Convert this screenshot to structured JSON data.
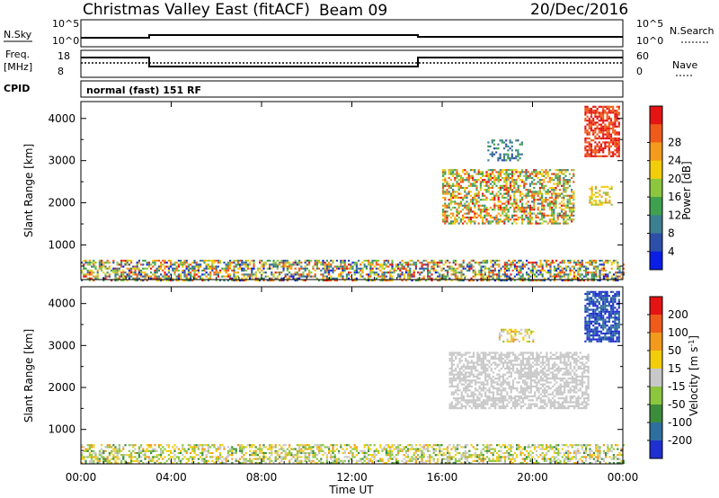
{
  "header": {
    "site": "Christmas Valley East (fitACF)",
    "beam": "Beam 09",
    "date": "20/Dec/2016"
  },
  "top_panels": {
    "nsky_label": "N.Sky",
    "nsearch_label": "N.Search",
    "noise_ticks_left": [
      "10^5",
      "10^0"
    ],
    "noise_ticks_right": [
      "10^5",
      "10^0"
    ],
    "freq_label": "Freq.",
    "freq_unit": "[MHz]",
    "freq_ticks": [
      "18",
      "8"
    ],
    "nave_label": "Nave",
    "nave_ticks": [
      "60",
      "0"
    ],
    "cpid_label": "CPID",
    "cpid_value": "normal (fast) 151 RF"
  },
  "x_axis": {
    "label": "Time UT",
    "ticks": [
      "00:00",
      "04:00",
      "08:00",
      "12:00",
      "16:00",
      "20:00",
      "00:00"
    ]
  },
  "chart_data": [
    {
      "type": "heatmap",
      "panel": "power",
      "ylabel": "Slant Range [km]",
      "colorbar_label": "Power [dB]",
      "x_range_hours": [
        0,
        24
      ],
      "y_range_km": [
        180,
        4400
      ],
      "y_ticks": [
        1000,
        2000,
        3000,
        4000
      ],
      "colorbar_ticks": [
        4,
        8,
        12,
        16,
        20,
        24,
        28
      ],
      "colorbar_colors": [
        "#0a1ee6",
        "#2d4fa8",
        "#3c7f90",
        "#3fa04f",
        "#8cc63f",
        "#f2cd0b",
        "#f49a1c",
        "#ef5b1b",
        "#e41414"
      ],
      "regions": [
        {
          "t0": 0,
          "t1": 24,
          "r0": 180,
          "r1": 650,
          "density": 0.55,
          "vmin": 0,
          "vmax": 8
        },
        {
          "t0": 16,
          "t1": 21.8,
          "r0": 1500,
          "r1": 2800,
          "density": 0.55,
          "vmin": 2,
          "vmax": 8
        },
        {
          "t0": 18,
          "t1": 19.5,
          "r0": 3000,
          "r1": 3500,
          "density": 0.35,
          "vmin": 1,
          "vmax": 3
        },
        {
          "t0": 22.3,
          "t1": 23.8,
          "r0": 3100,
          "r1": 4300,
          "density": 0.7,
          "vmin": 7,
          "vmax": 8
        },
        {
          "t0": 22.5,
          "t1": 23.5,
          "r0": 1950,
          "r1": 2400,
          "density": 0.5,
          "vmin": 4,
          "vmax": 6
        }
      ]
    },
    {
      "type": "heatmap",
      "panel": "velocity",
      "ylabel": "Slant Range [km]",
      "colorbar_label": "Velocity [m s^-1]",
      "x_range_hours": [
        0,
        24
      ],
      "y_range_km": [
        180,
        4400
      ],
      "y_ticks": [
        1000,
        2000,
        3000,
        4000
      ],
      "colorbar_ticks": [
        200,
        100,
        50,
        15,
        -15,
        -50,
        -100,
        -200
      ],
      "colorbar_colors": [
        "#1f2fd0",
        "#2f6fa0",
        "#3c8c3c",
        "#8cc63f",
        "#c8c8c8",
        "#f2cd0b",
        "#f29a1c",
        "#ef5b1b",
        "#e41414"
      ],
      "regions": [
        {
          "t0": 0,
          "t1": 24,
          "r0": 180,
          "r1": 650,
          "density": 0.5,
          "vmin": 2,
          "vmax": 6
        },
        {
          "t0": 16.3,
          "t1": 22.5,
          "r0": 1500,
          "r1": 2850,
          "density": 0.6,
          "vmin": 4,
          "vmax": 4
        },
        {
          "t0": 18.5,
          "t1": 20,
          "r0": 3100,
          "r1": 3400,
          "density": 0.4,
          "vmin": 3,
          "vmax": 6
        },
        {
          "t0": 22.3,
          "t1": 23.8,
          "r0": 3100,
          "r1": 4300,
          "density": 0.75,
          "vmin": 0,
          "vmax": 1
        }
      ]
    }
  ]
}
